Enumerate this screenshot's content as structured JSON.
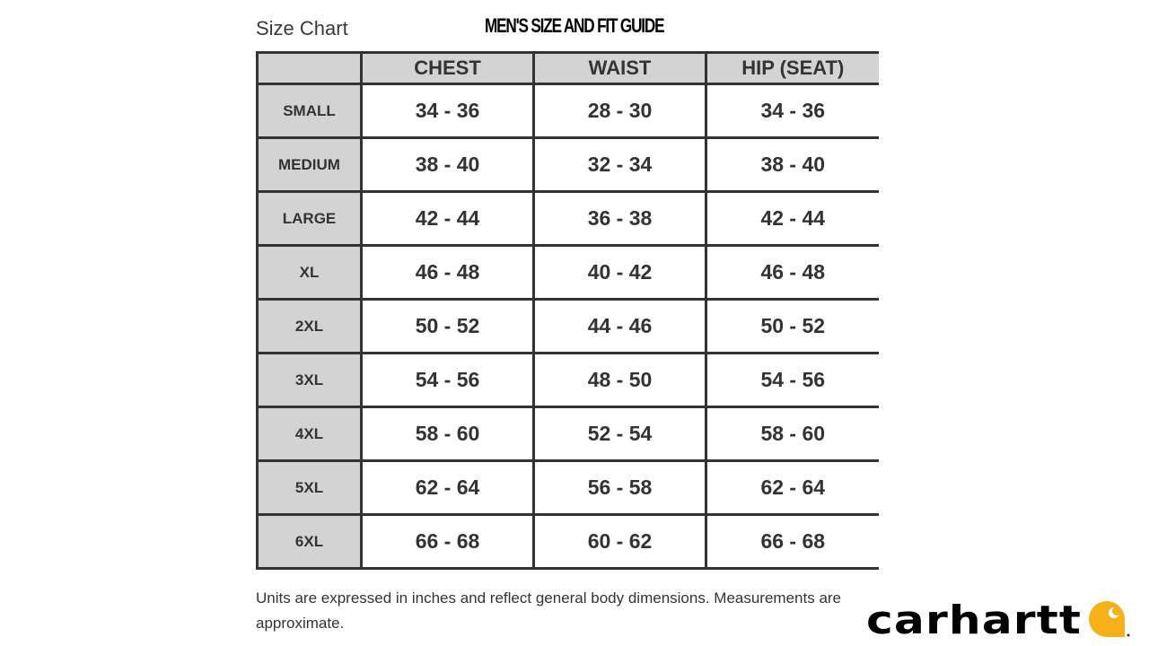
{
  "title": "Size Chart",
  "guide_title": "MEN'S SIZE AND FIT GUIDE",
  "columns": [
    "",
    "CHEST",
    "WAIST",
    "HIP (SEAT)"
  ],
  "rows": [
    {
      "size": "SMALL",
      "chest": "34 - 36",
      "waist": "28 - 30",
      "hip": "34 - 36"
    },
    {
      "size": "MEDIUM",
      "chest": "38 - 40",
      "waist": "32 - 34",
      "hip": "38 - 40"
    },
    {
      "size": "LARGE",
      "chest": "42 - 44",
      "waist": "36 - 38",
      "hip": "42 - 44"
    },
    {
      "size": "XL",
      "chest": "46 - 48",
      "waist": "40 - 42",
      "hip": "46 - 48"
    },
    {
      "size": "2XL",
      "chest": "50 - 52",
      "waist": "44 - 46",
      "hip": "50 - 52"
    },
    {
      "size": "3XL",
      "chest": "54 - 56",
      "waist": "48 - 50",
      "hip": "54 - 56"
    },
    {
      "size": "4XL",
      "chest": "58 - 60",
      "waist": "52 - 54",
      "hip": "58 - 60"
    },
    {
      "size": "5XL",
      "chest": "62 - 64",
      "waist": "56 - 58",
      "hip": "62 - 64"
    },
    {
      "size": "6XL",
      "chest": "66 - 68",
      "waist": "60 - 62",
      "hip": "66 - 68"
    }
  ],
  "note": "Units are expressed in inches and reflect general body dimensions. Measurements are approximate.",
  "logo": {
    "text": "carhartt",
    "accent_color": "#f6b01a"
  }
}
